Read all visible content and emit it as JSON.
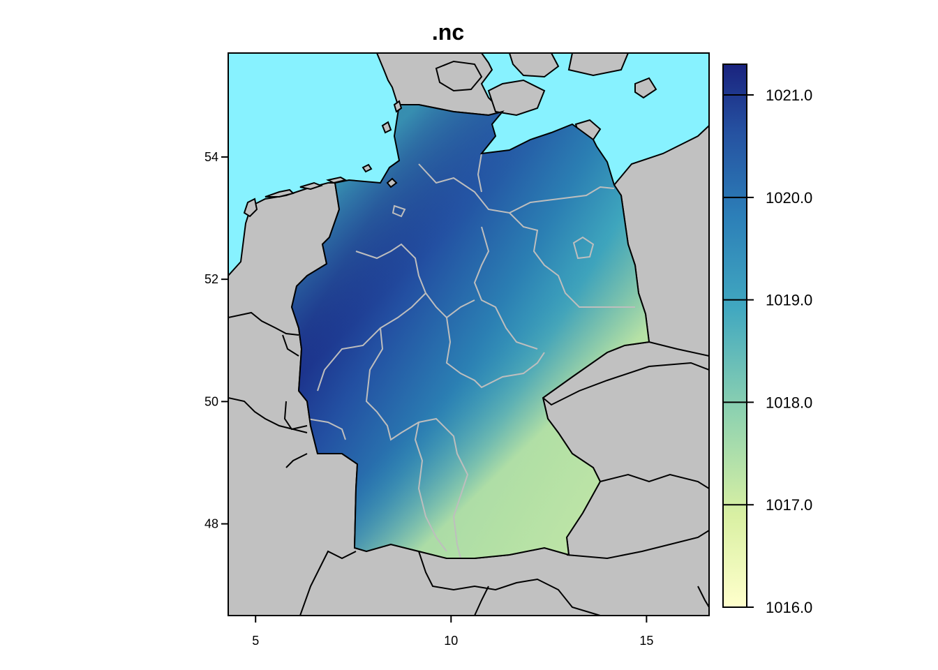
{
  "title": ".nc",
  "map": {
    "x_axis": {
      "ticks": [
        5,
        10,
        15
      ],
      "range": [
        4.3,
        16.6
      ]
    },
    "y_axis": {
      "ticks": [
        48,
        50,
        52,
        54
      ],
      "range": [
        46.5,
        55.7
      ]
    },
    "colors": {
      "sea": "#87F2FF",
      "land": "#C1C1C1",
      "border": "#000000",
      "state_border": "#BEBEBE"
    }
  },
  "legend": {
    "min": 1016.0,
    "max": 1021.3,
    "ticks": [
      "1021.0",
      "1020.0",
      "1019.0",
      "1018.0",
      "1017.0",
      "1016.0"
    ],
    "palette": [
      "#FFFFCC",
      "#D9F0A3",
      "#A1DAB4",
      "#41B6C4",
      "#2C7FB8",
      "#253494",
      "#1A237E"
    ]
  }
}
